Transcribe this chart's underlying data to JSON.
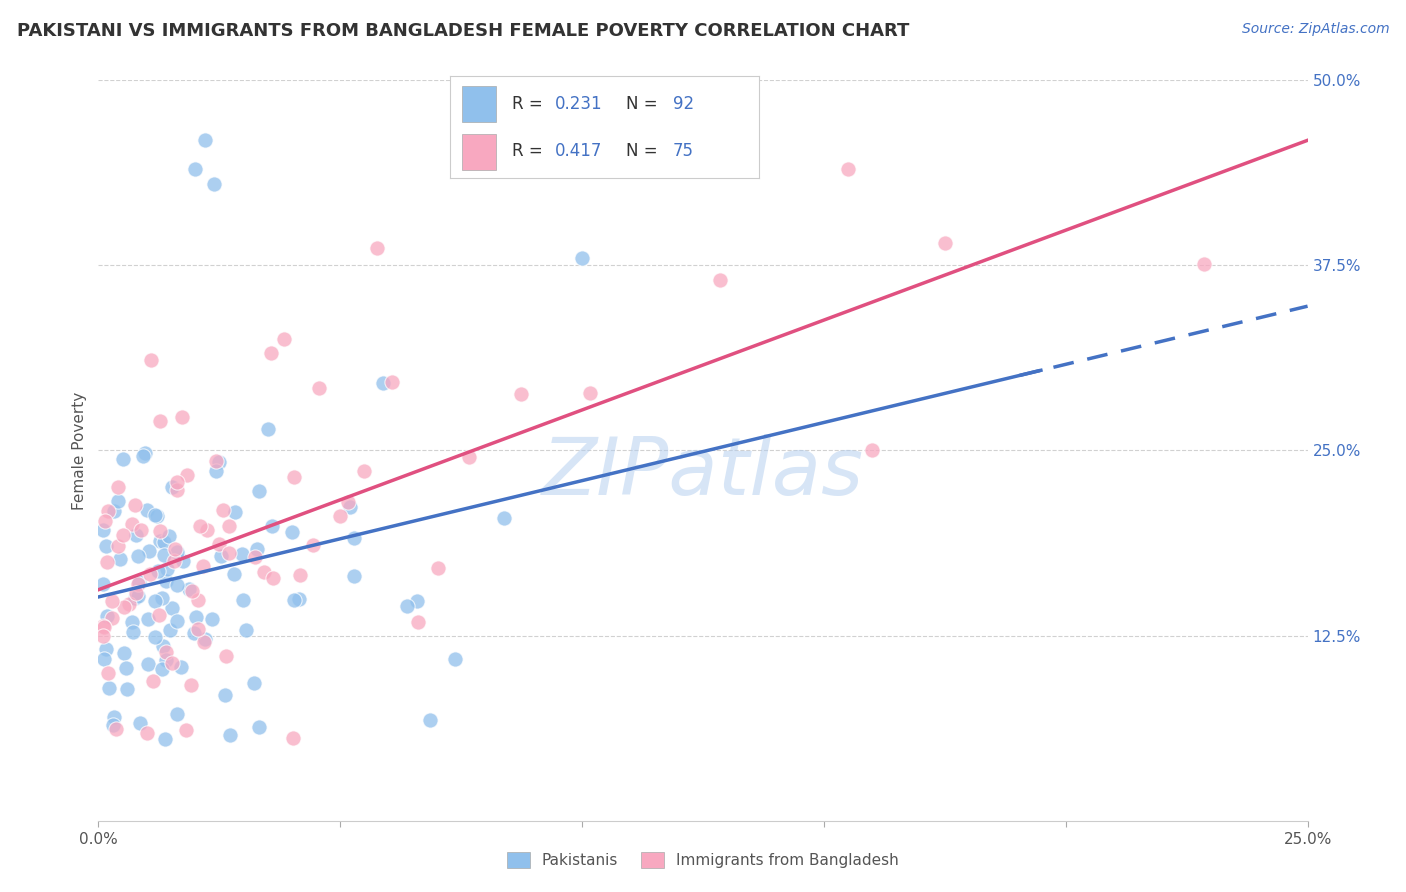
{
  "title": "PAKISTANI VS IMMIGRANTS FROM BANGLADESH FEMALE POVERTY CORRELATION CHART",
  "source_text": "Source: ZipAtlas.com",
  "xlabel_pakistanis": "Pakistanis",
  "xlabel_bangladesh": "Immigrants from Bangladesh",
  "ylabel": "Female Poverty",
  "xlim": [
    0.0,
    0.25
  ],
  "ylim": [
    0.0,
    0.5
  ],
  "ytick_positions": [
    0.125,
    0.25,
    0.375,
    0.5
  ],
  "yticklabels_right": [
    "12.5%",
    "25.0%",
    "37.5%",
    "50.0%"
  ],
  "R_pakistani": 0.231,
  "N_pakistani": 92,
  "R_bangladeshi": 0.417,
  "N_bangladeshi": 75,
  "color_pakistani": "#90C0EC",
  "color_bangladesh": "#F8A8C0",
  "color_trend_pakistani": "#4472C4",
  "color_trend_bangladesh": "#E05080",
  "watermark_text": "ZIPatlas",
  "watermark_color": "#B0CCEE",
  "background_color": "#FFFFFF",
  "grid_color": "#CCCCCC",
  "legend_text_color": "#333333",
  "legend_value_color": "#4472C4",
  "title_color": "#333333",
  "source_color": "#4472C4",
  "axis_label_color": "#555555",
  "right_tick_color": "#4472C4"
}
